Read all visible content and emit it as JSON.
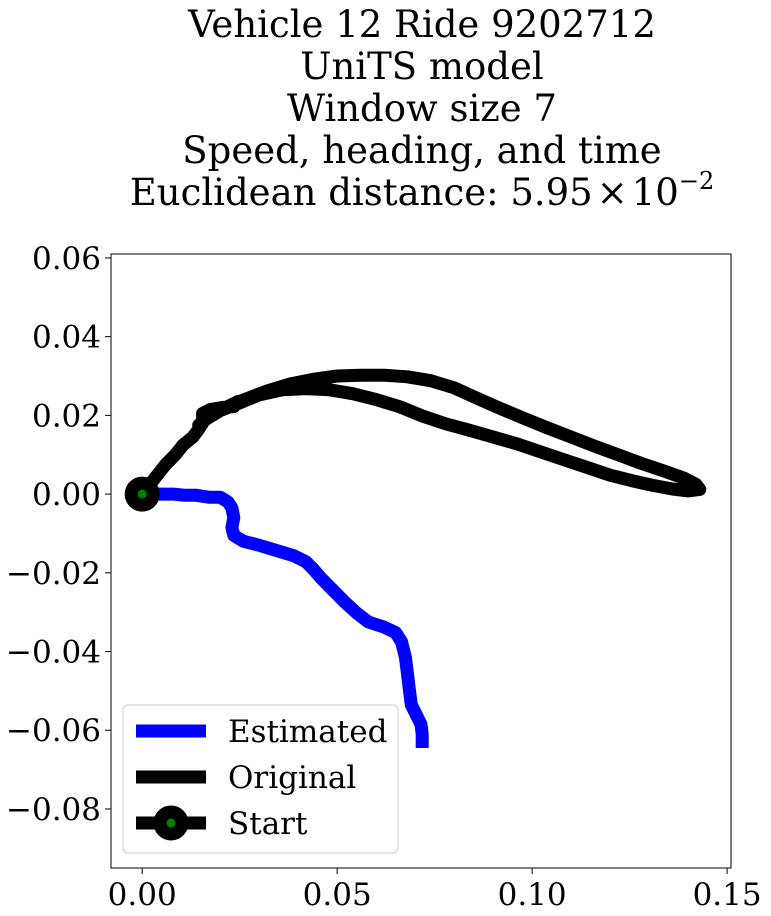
{
  "chart_data": {
    "type": "line",
    "title_lines": [
      "Vehicle 12 Ride 9202712",
      "UniTS model",
      "Window size 7",
      "Speed, heading, and time",
      "Euclidean distance: 5.95×10⁻²"
    ],
    "title_euclid_prefix": "Euclidean distance: ",
    "title_euclid_mantissa": "5.95",
    "title_euclid_times": "×",
    "title_euclid_base": "10",
    "title_euclid_exponent": "−2",
    "xlabel": "",
    "ylabel": "",
    "xlim": [
      -0.008,
      0.151
    ],
    "ylim": [
      -0.095,
      0.061
    ],
    "xticks": [
      0.0,
      0.05,
      0.1,
      0.15
    ],
    "xtick_labels": [
      "0.00",
      "0.05",
      "0.10",
      "0.15"
    ],
    "yticks": [
      0.06,
      0.04,
      0.02,
      0.0,
      -0.02,
      -0.04,
      -0.06,
      -0.08
    ],
    "ytick_labels": [
      "0.06",
      "0.04",
      "0.02",
      "0.00",
      "−0.02",
      "−0.04",
      "−0.06",
      "−0.08"
    ],
    "grid": false,
    "legend_position": "lower-left",
    "series": [
      {
        "name": "Estimated",
        "color": "#0000ff",
        "points": [
          [
            0.0,
            0.0
          ],
          [
            0.004,
            0.0
          ],
          [
            0.008,
            0.0
          ],
          [
            0.011,
            -0.0003
          ],
          [
            0.014,
            -0.0003
          ],
          [
            0.017,
            -0.0008
          ],
          [
            0.02,
            -0.0008
          ],
          [
            0.022,
            -0.002
          ],
          [
            0.023,
            -0.0035
          ],
          [
            0.0235,
            -0.006
          ],
          [
            0.023,
            -0.0085
          ],
          [
            0.0235,
            -0.0105
          ],
          [
            0.026,
            -0.012
          ],
          [
            0.03,
            -0.013
          ],
          [
            0.034,
            -0.0142
          ],
          [
            0.039,
            -0.0157
          ],
          [
            0.042,
            -0.0172
          ],
          [
            0.044,
            -0.0192
          ],
          [
            0.046,
            -0.0215
          ],
          [
            0.049,
            -0.0245
          ],
          [
            0.052,
            -0.0275
          ],
          [
            0.055,
            -0.0302
          ],
          [
            0.058,
            -0.0325
          ],
          [
            0.062,
            -0.0338
          ],
          [
            0.065,
            -0.0352
          ],
          [
            0.0665,
            -0.0375
          ],
          [
            0.0675,
            -0.0415
          ],
          [
            0.068,
            -0.0455
          ],
          [
            0.0685,
            -0.0495
          ],
          [
            0.069,
            -0.0535
          ],
          [
            0.0705,
            -0.0565
          ],
          [
            0.0715,
            -0.0585
          ],
          [
            0.0718,
            -0.061
          ],
          [
            0.0718,
            -0.0645
          ]
        ]
      },
      {
        "name": "Original",
        "color": "#000000",
        "points": [
          [
            0.0,
            0.0
          ],
          [
            0.002,
            0.0025
          ],
          [
            0.004,
            0.005
          ],
          [
            0.006,
            0.0075
          ],
          [
            0.0085,
            0.01
          ],
          [
            0.0105,
            0.0125
          ],
          [
            0.013,
            0.0145
          ],
          [
            0.0145,
            0.0165
          ],
          [
            0.0155,
            0.018
          ],
          [
            0.0155,
            0.0205
          ],
          [
            0.0175,
            0.0215
          ],
          [
            0.0205,
            0.022
          ],
          [
            0.0235,
            0.0222
          ],
          [
            0.0245,
            0.0235
          ],
          [
            0.0235,
            0.023
          ],
          [
            0.021,
            0.0218
          ],
          [
            0.017,
            0.0195
          ],
          [
            0.0145,
            0.0175
          ],
          [
            0.016,
            0.0188
          ],
          [
            0.02,
            0.0212
          ],
          [
            0.025,
            0.0232
          ],
          [
            0.03,
            0.0252
          ],
          [
            0.036,
            0.0265
          ],
          [
            0.042,
            0.0268
          ],
          [
            0.048,
            0.0265
          ],
          [
            0.054,
            0.0255
          ],
          [
            0.06,
            0.024
          ],
          [
            0.066,
            0.0222
          ],
          [
            0.072,
            0.0198
          ],
          [
            0.078,
            0.0178
          ],
          [
            0.084,
            0.0162
          ],
          [
            0.09,
            0.0145
          ],
          [
            0.096,
            0.0128
          ],
          [
            0.102,
            0.0108
          ],
          [
            0.108,
            0.0088
          ],
          [
            0.114,
            0.0068
          ],
          [
            0.12,
            0.0048
          ],
          [
            0.126,
            0.0033
          ],
          [
            0.131,
            0.0022
          ],
          [
            0.136,
            0.0013
          ],
          [
            0.14,
            0.0008
          ],
          [
            0.143,
            0.0012
          ],
          [
            0.142,
            0.0025
          ],
          [
            0.139,
            0.004
          ],
          [
            0.134,
            0.0058
          ],
          [
            0.128,
            0.0078
          ],
          [
            0.122,
            0.01
          ],
          [
            0.116,
            0.0122
          ],
          [
            0.11,
            0.0145
          ],
          [
            0.104,
            0.0168
          ],
          [
            0.098,
            0.0192
          ],
          [
            0.092,
            0.0217
          ],
          [
            0.086,
            0.0243
          ],
          [
            0.08,
            0.027
          ],
          [
            0.074,
            0.0288
          ],
          [
            0.068,
            0.0298
          ],
          [
            0.062,
            0.0302
          ],
          [
            0.056,
            0.0302
          ],
          [
            0.05,
            0.03
          ],
          [
            0.044,
            0.0292
          ],
          [
            0.038,
            0.028
          ],
          [
            0.032,
            0.0262
          ],
          [
            0.027,
            0.0243
          ],
          [
            0.024,
            0.0232
          ]
        ]
      }
    ],
    "start_marker": {
      "name": "Start",
      "x": 0.0,
      "y": 0.0,
      "edge_color": "#000000",
      "face_color": "#008000"
    }
  }
}
